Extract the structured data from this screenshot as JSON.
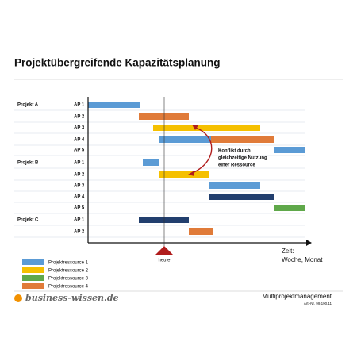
{
  "title": "Projektübergreifende Kapazitätsplanung",
  "projects": [
    {
      "label": "Projekt A",
      "packages": [
        "AP 1",
        "AP 2",
        "AP 3",
        "AP 4",
        "AP 5"
      ]
    },
    {
      "label": "Projekt B",
      "packages": [
        "AP 1",
        "AP 2",
        "AP 3",
        "AP 4",
        "AP 5"
      ]
    },
    {
      "label": "Projekt C",
      "packages": [
        "AP 1",
        "AP 2"
      ]
    }
  ],
  "annotation": [
    "Konflikt durch",
    "gleichzeitige Nutzung",
    "einer Ressource"
  ],
  "today": "heute",
  "axis": [
    "Zeit:",
    "Woche, Monat"
  ],
  "legend": [
    "Projektressource 1",
    "Projektressource 2",
    "Projektressource 3",
    "Projektressource 4"
  ],
  "footer": {
    "logo": "business-wissen.de",
    "title": "Multiprojektmanagement",
    "article": "Art.-Nr. 99.190.11"
  }
}
